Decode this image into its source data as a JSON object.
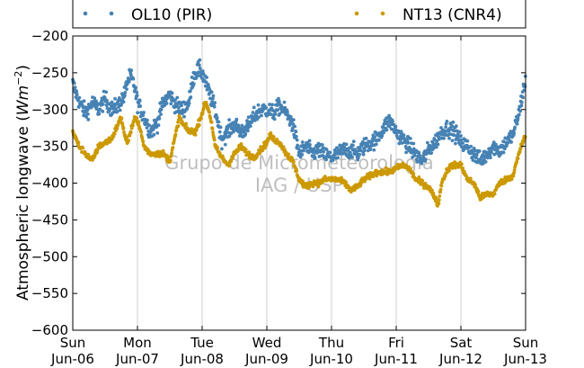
{
  "chart_data": {
    "type": "scatter",
    "title": "",
    "xlabel": "",
    "ylabel": "Atmospheric longwave (",
    "ylabel_unit": "Wm",
    "ylabel_exp": "−2",
    "ylabel_close": ")",
    "ylim": [
      -600,
      -200
    ],
    "yticks": [
      -200,
      -250,
      -300,
      -350,
      -400,
      -450,
      -500,
      -550,
      -600
    ],
    "ytick_labels": [
      "−200",
      "−250",
      "−300",
      "−350",
      "−400",
      "−450",
      "−500",
      "−550",
      "−600"
    ],
    "xlim_days": [
      0,
      7
    ],
    "xticks": [
      {
        "day": "Sun",
        "date": "Jun-06"
      },
      {
        "day": "Mon",
        "date": "Jun-07"
      },
      {
        "day": "Tue",
        "date": "Jun-08"
      },
      {
        "day": "Wed",
        "date": "Jun-09"
      },
      {
        "day": "Thu",
        "date": "Jun-10"
      },
      {
        "day": "Fri",
        "date": "Jun-11"
      },
      {
        "day": "Sat",
        "date": "Jun-12"
      },
      {
        "day": "Sun",
        "date": "Jun-13"
      }
    ],
    "grid": "vertical",
    "legend": "top",
    "watermark": [
      "Grupo de Micrometeorologia",
      "IAG / USP"
    ],
    "series": [
      {
        "name": "OL10 (PIR)",
        "color": "#4682b4",
        "noise": 11,
        "values": [
          [
            0.0,
            -265
          ],
          [
            0.1,
            -290
          ],
          [
            0.2,
            -305
          ],
          [
            0.3,
            -290
          ],
          [
            0.4,
            -300
          ],
          [
            0.5,
            -285
          ],
          [
            0.6,
            -300
          ],
          [
            0.7,
            -295
          ],
          [
            0.8,
            -280
          ],
          [
            0.85,
            -260
          ],
          [
            0.9,
            -255
          ],
          [
            0.95,
            -268
          ],
          [
            1.0,
            -290
          ],
          [
            1.1,
            -310
          ],
          [
            1.2,
            -330
          ],
          [
            1.3,
            -320
          ],
          [
            1.4,
            -290
          ],
          [
            1.5,
            -280
          ],
          [
            1.6,
            -295
          ],
          [
            1.7,
            -300
          ],
          [
            1.8,
            -290
          ],
          [
            1.85,
            -260
          ],
          [
            1.9,
            -250
          ],
          [
            1.95,
            -245
          ],
          [
            2.0,
            -250
          ],
          [
            2.1,
            -275
          ],
          [
            2.2,
            -300
          ],
          [
            2.3,
            -340
          ],
          [
            2.4,
            -330
          ],
          [
            2.5,
            -320
          ],
          [
            2.6,
            -330
          ],
          [
            2.7,
            -325
          ],
          [
            2.8,
            -310
          ],
          [
            2.9,
            -300
          ],
          [
            3.0,
            -300
          ],
          [
            3.1,
            -305
          ],
          [
            3.2,
            -295
          ],
          [
            3.3,
            -305
          ],
          [
            3.4,
            -320
          ],
          [
            3.5,
            -360
          ],
          [
            3.6,
            -350
          ],
          [
            3.7,
            -360
          ],
          [
            3.8,
            -355
          ],
          [
            3.9,
            -362
          ],
          [
            4.0,
            -365
          ],
          [
            4.1,
            -360
          ],
          [
            4.2,
            -355
          ],
          [
            4.3,
            -355
          ],
          [
            4.4,
            -360
          ],
          [
            4.5,
            -350
          ],
          [
            4.6,
            -345
          ],
          [
            4.7,
            -340
          ],
          [
            4.8,
            -325
          ],
          [
            4.9,
            -315
          ],
          [
            5.0,
            -330
          ],
          [
            5.1,
            -340
          ],
          [
            5.2,
            -350
          ],
          [
            5.3,
            -360
          ],
          [
            5.4,
            -370
          ],
          [
            5.5,
            -355
          ],
          [
            5.6,
            -345
          ],
          [
            5.7,
            -330
          ],
          [
            5.8,
            -325
          ],
          [
            5.9,
            -330
          ],
          [
            6.0,
            -345
          ],
          [
            6.1,
            -350
          ],
          [
            6.2,
            -360
          ],
          [
            6.3,
            -370
          ],
          [
            6.4,
            -360
          ],
          [
            6.5,
            -350
          ],
          [
            6.6,
            -355
          ],
          [
            6.7,
            -345
          ],
          [
            6.8,
            -335
          ],
          [
            6.9,
            -305
          ],
          [
            6.95,
            -280
          ],
          [
            7.0,
            -260
          ]
        ]
      },
      {
        "name": "NT13 (CNR4)",
        "color": "#cc9900",
        "noise": 4,
        "values": [
          [
            0.0,
            -330
          ],
          [
            0.05,
            -340
          ],
          [
            0.1,
            -350
          ],
          [
            0.2,
            -360
          ],
          [
            0.3,
            -370
          ],
          [
            0.4,
            -350
          ],
          [
            0.5,
            -345
          ],
          [
            0.6,
            -340
          ],
          [
            0.7,
            -320
          ],
          [
            0.75,
            -310
          ],
          [
            0.8,
            -335
          ],
          [
            0.85,
            -345
          ],
          [
            0.9,
            -330
          ],
          [
            0.95,
            -310
          ],
          [
            1.0,
            -315
          ],
          [
            1.05,
            -330
          ],
          [
            1.1,
            -350
          ],
          [
            1.2,
            -360
          ],
          [
            1.3,
            -360
          ],
          [
            1.4,
            -360
          ],
          [
            1.5,
            -370
          ],
          [
            1.6,
            -330
          ],
          [
            1.65,
            -310
          ],
          [
            1.7,
            -320
          ],
          [
            1.8,
            -330
          ],
          [
            1.9,
            -330
          ],
          [
            2.0,
            -305
          ],
          [
            2.05,
            -290
          ],
          [
            2.1,
            -300
          ],
          [
            2.15,
            -320
          ],
          [
            2.2,
            -350
          ],
          [
            2.3,
            -365
          ],
          [
            2.4,
            -375
          ],
          [
            2.5,
            -360
          ],
          [
            2.6,
            -350
          ],
          [
            2.7,
            -360
          ],
          [
            2.8,
            -365
          ],
          [
            2.9,
            -355
          ],
          [
            3.0,
            -345
          ],
          [
            3.05,
            -335
          ],
          [
            3.1,
            -340
          ],
          [
            3.2,
            -345
          ],
          [
            3.3,
            -360
          ],
          [
            3.4,
            -370
          ],
          [
            3.5,
            -395
          ],
          [
            3.6,
            -405
          ],
          [
            3.7,
            -400
          ],
          [
            3.8,
            -400
          ],
          [
            3.9,
            -395
          ],
          [
            4.0,
            -395
          ],
          [
            4.1,
            -395
          ],
          [
            4.2,
            -400
          ],
          [
            4.3,
            -410
          ],
          [
            4.4,
            -405
          ],
          [
            4.5,
            -395
          ],
          [
            4.6,
            -390
          ],
          [
            4.7,
            -385
          ],
          [
            4.8,
            -385
          ],
          [
            4.9,
            -385
          ],
          [
            5.0,
            -380
          ],
          [
            5.1,
            -375
          ],
          [
            5.2,
            -380
          ],
          [
            5.3,
            -395
          ],
          [
            5.4,
            -400
          ],
          [
            5.5,
            -405
          ],
          [
            5.6,
            -420
          ],
          [
            5.65,
            -430
          ],
          [
            5.7,
            -400
          ],
          [
            5.8,
            -380
          ],
          [
            5.9,
            -375
          ],
          [
            6.0,
            -375
          ],
          [
            6.1,
            -395
          ],
          [
            6.2,
            -400
          ],
          [
            6.3,
            -420
          ],
          [
            6.4,
            -415
          ],
          [
            6.5,
            -415
          ],
          [
            6.6,
            -400
          ],
          [
            6.7,
            -395
          ],
          [
            6.8,
            -390
          ],
          [
            6.9,
            -360
          ],
          [
            6.95,
            -345
          ],
          [
            7.0,
            -335
          ]
        ]
      }
    ]
  }
}
